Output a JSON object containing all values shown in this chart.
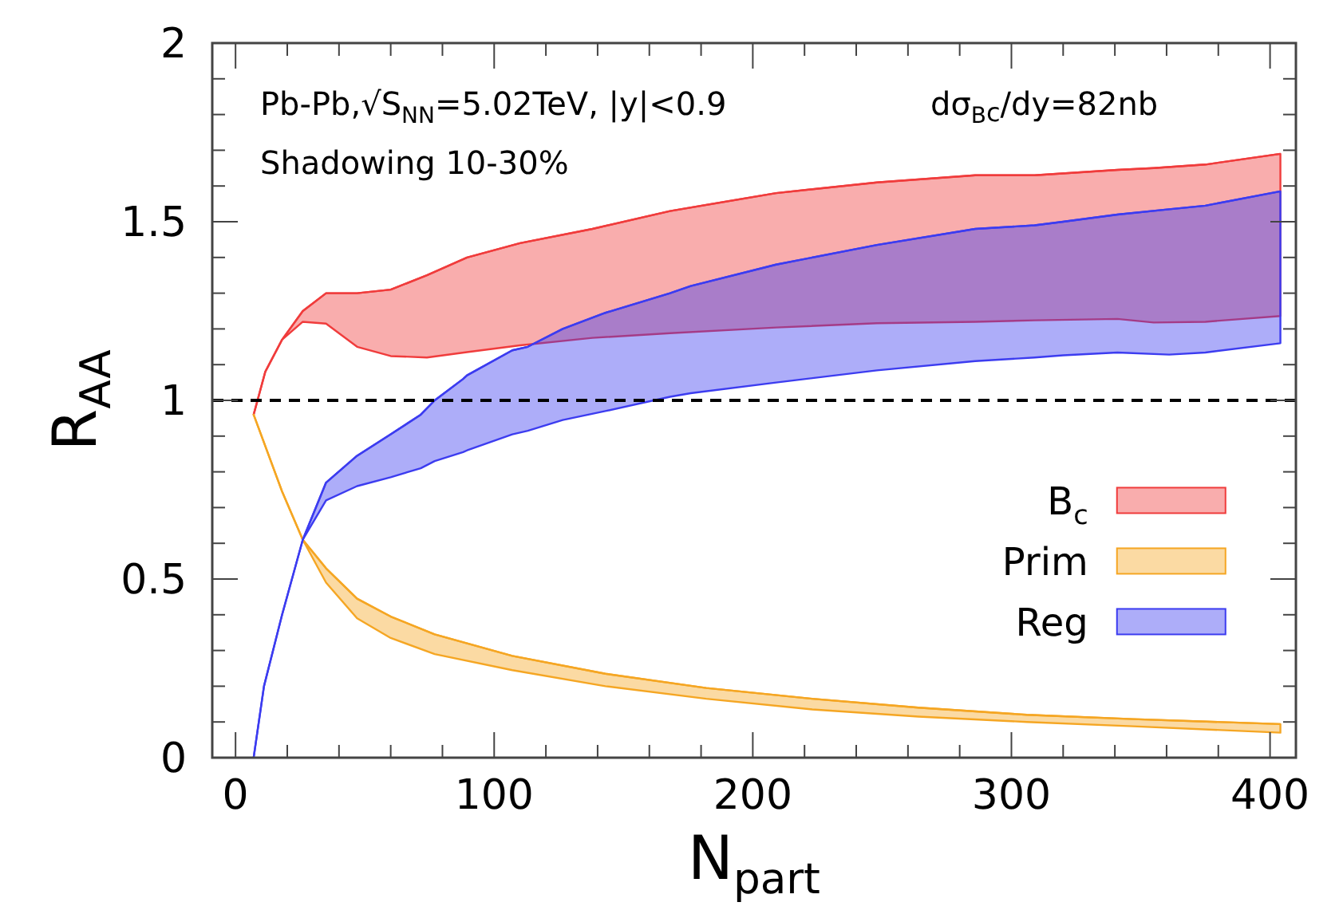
{
  "chart_data": {
    "type": "line",
    "marker": "none",
    "xlabel": "N$_{part}$",
    "ylabel": "R$_{AA}$",
    "annotations": [
      "Pb-Pb,√S$_{NN}$=5.02TeV, |y|<0.9",
      "dσ$_{B}$$_{c}$/dy=82nb",
      "Shadowing 10-30%"
    ],
    "xlim": [
      -9,
      410
    ],
    "ylim": [
      0,
      2
    ],
    "xticks": [
      {
        "value": 0,
        "label": "0"
      },
      {
        "value": 20,
        "label": null
      },
      {
        "value": 40,
        "label": null
      },
      {
        "value": 60,
        "label": null
      },
      {
        "value": 80,
        "label": null
      },
      {
        "value": 100,
        "label": "100"
      },
      {
        "value": 120,
        "label": null
      },
      {
        "value": 140,
        "label": null
      },
      {
        "value": 160,
        "label": null
      },
      {
        "value": 180,
        "label": null
      },
      {
        "value": 200,
        "label": "200"
      },
      {
        "value": 220,
        "label": null
      },
      {
        "value": 240,
        "label": null
      },
      {
        "value": 260,
        "label": null
      },
      {
        "value": 280,
        "label": null
      },
      {
        "value": 300,
        "label": "300"
      },
      {
        "value": 320,
        "label": null
      },
      {
        "value": 340,
        "label": null
      },
      {
        "value": 360,
        "label": null
      },
      {
        "value": 380,
        "label": null
      },
      {
        "value": 400,
        "label": "400"
      }
    ],
    "yticks": [
      {
        "value": 0,
        "label": "0"
      },
      {
        "value": 0.1,
        "label": null
      },
      {
        "value": 0.2,
        "label": null
      },
      {
        "value": 0.3,
        "label": null
      },
      {
        "value": 0.4,
        "label": null
      },
      {
        "value": 0.5,
        "label": "0.5"
      },
      {
        "value": 0.6,
        "label": null
      },
      {
        "value": 0.7,
        "label": null
      },
      {
        "value": 0.8,
        "label": null
      },
      {
        "value": 0.9,
        "label": null
      },
      {
        "value": 1,
        "label": "1"
      },
      {
        "value": 1.1,
        "label": null
      },
      {
        "value": 1.2,
        "label": null
      },
      {
        "value": 1.3,
        "label": null
      },
      {
        "value": 1.4,
        "label": null
      },
      {
        "value": 1.5,
        "label": "1.5"
      },
      {
        "value": 1.6,
        "label": null
      },
      {
        "value": 1.7,
        "label": null
      },
      {
        "value": 1.8,
        "label": null
      },
      {
        "value": 1.9,
        "label": null
      },
      {
        "value": 2,
        "label": "2"
      }
    ],
    "ref_lines": [
      {
        "axis": "y",
        "value": 1,
        "color": "#000000",
        "line_style": "dashed"
      }
    ],
    "legend": "right",
    "grid": false,
    "series": [
      {
        "name": "B$_{c}$",
        "color": "#f03c3c",
        "x": [
          7,
          11.5,
          18,
          26,
          35,
          47,
          60,
          74,
          89.5,
          110,
          138,
          168,
          209,
          248,
          286,
          309,
          341,
          355,
          375,
          404
        ],
        "values": [
          0.96,
          1.08,
          1.17,
          1.25,
          1.3,
          1.3,
          1.31,
          1.35,
          1.4,
          1.44,
          1.48,
          1.53,
          1.58,
          1.61,
          1.63,
          1.63,
          1.645,
          1.65,
          1.66,
          1.69
        ],
        "upper": [
          0.96,
          1.08,
          1.17,
          1.25,
          1.3,
          1.3,
          1.31,
          1.35,
          1.4,
          1.44,
          1.48,
          1.53,
          1.58,
          1.61,
          1.63,
          1.63,
          1.645,
          1.65,
          1.66,
          1.69
        ],
        "lower": [
          0.96,
          1.08,
          1.17,
          1.22,
          1.215,
          1.15,
          1.124,
          1.12,
          1.135,
          1.154,
          1.175,
          1.188,
          1.204,
          1.216,
          1.22,
          1.224,
          1.228,
          1.218,
          1.22,
          1.236
        ]
      },
      {
        "name": "Prim",
        "color": "#f5a623",
        "x": [
          7,
          18,
          26,
          35,
          47,
          60,
          77,
          107,
          143,
          182,
          223,
          264,
          306,
          347,
          404
        ],
        "values": [
          0.96,
          0.745,
          0.61,
          0.53,
          0.445,
          0.395,
          0.345,
          0.285,
          0.235,
          0.195,
          0.165,
          0.14,
          0.12,
          0.108,
          0.094
        ],
        "upper": [
          0.96,
          0.745,
          0.61,
          0.53,
          0.445,
          0.395,
          0.345,
          0.285,
          0.235,
          0.195,
          0.165,
          0.14,
          0.12,
          0.108,
          0.094
        ],
        "lower": [
          0.96,
          0.745,
          0.61,
          0.49,
          0.39,
          0.335,
          0.29,
          0.245,
          0.2,
          0.165,
          0.135,
          0.115,
          0.1,
          0.088,
          0.07
        ]
      },
      {
        "name": "Reg",
        "color": "#3c3cf0",
        "x": [
          7,
          11,
          18,
          26,
          35,
          47,
          60,
          71.6,
          77,
          88,
          89.5,
          107,
          113,
          126.5,
          143,
          168,
          176,
          209,
          248,
          286,
          309,
          320,
          341,
          361,
          375,
          404
        ],
        "values": [
          0,
          0.2,
          0.4,
          0.61,
          0.77,
          0.845,
          0.905,
          0.96,
          1.0,
          1.06,
          1.07,
          1.14,
          1.15,
          1.2,
          1.245,
          1.3,
          1.32,
          1.38,
          1.435,
          1.48,
          1.49,
          1.5,
          1.52,
          1.535,
          1.545,
          1.585
        ],
        "upper": [
          0,
          0.2,
          0.4,
          0.61,
          0.77,
          0.845,
          0.905,
          0.96,
          1.0,
          1.06,
          1.07,
          1.14,
          1.15,
          1.2,
          1.245,
          1.3,
          1.32,
          1.38,
          1.435,
          1.48,
          1.49,
          1.5,
          1.52,
          1.535,
          1.545,
          1.585
        ],
        "lower": [
          0,
          0.2,
          0.4,
          0.61,
          0.72,
          0.76,
          0.785,
          0.81,
          0.83,
          0.855,
          0.86,
          0.905,
          0.915,
          0.945,
          0.97,
          1.01,
          1.02,
          1.05,
          1.084,
          1.11,
          1.12,
          1.126,
          1.134,
          1.128,
          1.134,
          1.16
        ]
      }
    ]
  }
}
